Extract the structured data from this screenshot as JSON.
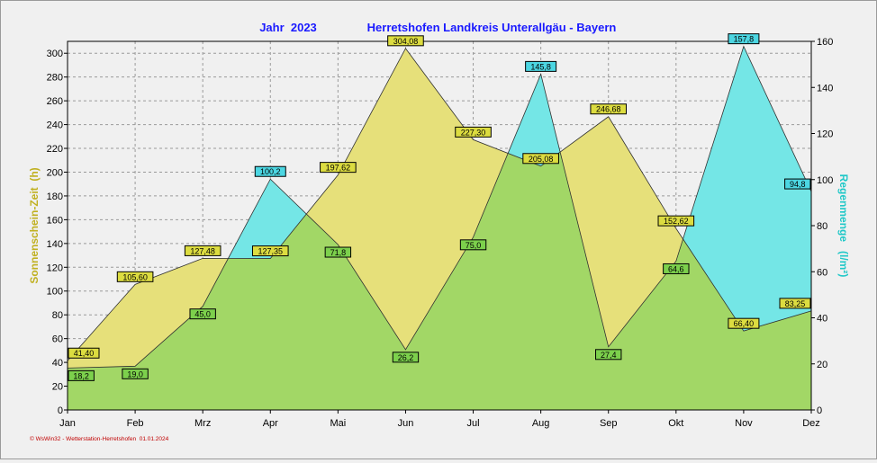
{
  "chart_data": {
    "type": "area",
    "title_year": "Jahr  2023",
    "title_station": "Herretshofen Landkreis Unterallgäu - Bayern",
    "footer": "© WsWin32 - Wetterstation-Herretshofen  01.01.2024",
    "categories": [
      "Jan",
      "Feb",
      "Mrz",
      "Apr",
      "Mai",
      "Jun",
      "Jul",
      "Aug",
      "Sep",
      "Okt",
      "Nov",
      "Dez"
    ],
    "y_left": {
      "label": "Sonnenschein-Zeit  (h)",
      "min": 0,
      "max": 310,
      "ticks": [
        0,
        20,
        40,
        60,
        80,
        100,
        120,
        140,
        160,
        180,
        200,
        220,
        240,
        260,
        280,
        300
      ]
    },
    "y_right": {
      "label": "Regenmenge   (l/m²)",
      "min": 0,
      "max": 160,
      "ticks": [
        0,
        20,
        40,
        60,
        80,
        100,
        120,
        140,
        160
      ]
    },
    "grid": true,
    "series": [
      {
        "name": "Sonnenschein-Zeit",
        "axis": "left",
        "color": "#e6e07a",
        "label_bg": "#dcdc40",
        "values": [
          41.4,
          105.6,
          127.48,
          127.35,
          197.62,
          304.08,
          227.3,
          205.08,
          246.68,
          152.62,
          66.4,
          83.25
        ],
        "labels": [
          "41,40",
          "105,60",
          "127,48",
          "127,35",
          "197,62",
          "304,08",
          "227,30",
          "205,08",
          "246,68",
          "152,62",
          "66,40",
          "83,25"
        ]
      },
      {
        "name": "Regenmenge",
        "axis": "right",
        "color": "#74e6e6",
        "label_bg": "#4cd6e2",
        "values": [
          18.2,
          19.0,
          45.0,
          100.2,
          71.8,
          26.2,
          75.0,
          145.8,
          27.4,
          64.6,
          157.8,
          94.8
        ],
        "labels": [
          "18,2",
          "19,0",
          "45,0",
          "100,2",
          "71,8",
          "26,2",
          "75,0",
          "145,8",
          "27,4",
          "64,6",
          "157,8",
          "94,8"
        ]
      }
    ],
    "overlap_color": "#a2d766",
    "colors": {
      "title": "#1a1aff",
      "left_axis_label": "#c0b020",
      "right_axis_label": "#20c8c8",
      "footer": "#c00000",
      "grid": "#9a9a9a"
    }
  }
}
